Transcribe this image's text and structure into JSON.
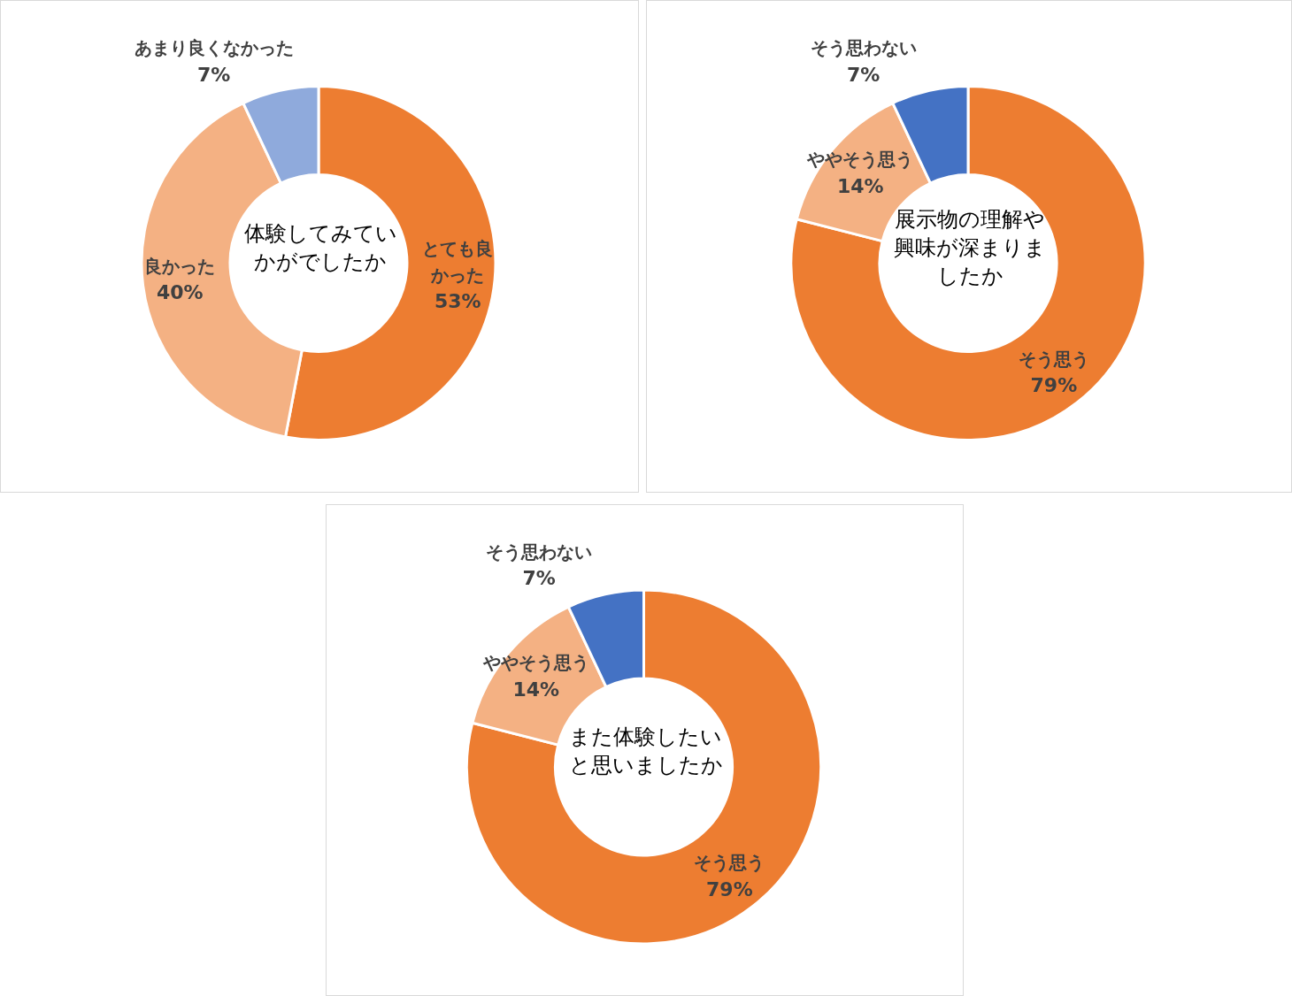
{
  "chart_data": [
    {
      "type": "donut",
      "title": "体験してみていかがでしたか",
      "categories": [
        "とても良かった",
        "良かった",
        "あまり良くなかった"
      ],
      "values": [
        53,
        40,
        7
      ],
      "colors": [
        "#ed7d31",
        "#f4b183",
        "#8faadc"
      ],
      "value_labels": [
        "53%",
        "40%",
        "7%"
      ]
    },
    {
      "type": "donut",
      "title": "展示物の理解や興味が深まりましたか",
      "categories": [
        "そう思う",
        "ややそう思う",
        "そう思わない"
      ],
      "values": [
        79,
        14,
        7
      ],
      "colors": [
        "#ed7d31",
        "#f4b183",
        "#4472c4"
      ],
      "value_labels": [
        "79%",
        "14%",
        "7%"
      ]
    },
    {
      "type": "donut",
      "title": "また体験したいと思いましたか",
      "categories": [
        "そう思う",
        "ややそう思う",
        "そう思わない"
      ],
      "values": [
        79,
        14,
        7
      ],
      "colors": [
        "#ed7d31",
        "#f4b183",
        "#4472c4"
      ],
      "value_labels": [
        "79%",
        "14%",
        "7%"
      ]
    }
  ]
}
